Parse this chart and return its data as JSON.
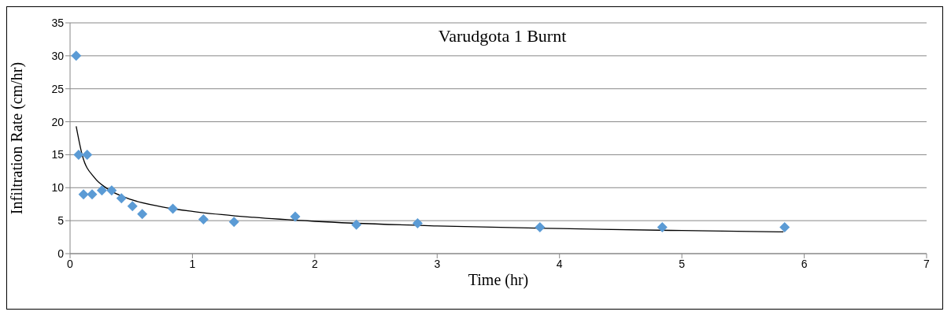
{
  "chart_data": {
    "type": "scatter",
    "title": "Varudgota 1 Burnt",
    "xlabel": "Time (hr)",
    "ylabel": "Infiltration Rate (cm/hr)",
    "xlim": [
      0,
      7
    ],
    "xticks": [
      0,
      1,
      2,
      3,
      4,
      5,
      6,
      7
    ],
    "ylim": [
      0,
      35
    ],
    "yticks": [
      0,
      5,
      10,
      15,
      20,
      25,
      30,
      35
    ],
    "grid": "y",
    "legend": false,
    "marker": "diamond",
    "series": [
      {
        "color": "#5b9bd5",
        "x": [
          0.05,
          0.07,
          0.11,
          0.14,
          0.18,
          0.26,
          0.34,
          0.42,
          0.51,
          0.59,
          0.84,
          1.09,
          1.34,
          1.84,
          2.34,
          2.84,
          3.84,
          4.84,
          5.84
        ],
        "values": [
          30,
          15,
          9,
          15,
          9,
          9.6,
          9.6,
          8.4,
          7.2,
          6,
          6.8,
          5.2,
          4.8,
          5.6,
          4.4,
          4.6,
          4,
          4,
          4
        ]
      },
      {
        "type": "line",
        "color": "#000000",
        "marker": "none",
        "x": [
          0.05,
          0.1,
          0.2,
          0.3,
          0.5,
          0.75,
          1,
          1.5,
          2,
          3,
          4,
          5,
          5.83
        ],
        "values": [
          19.3,
          14.9,
          11.5,
          9.9,
          8.2,
          7.1,
          6.4,
          5.5,
          4.9,
          4.2,
          3.8,
          3.5,
          3.3
        ]
      }
    ]
  }
}
